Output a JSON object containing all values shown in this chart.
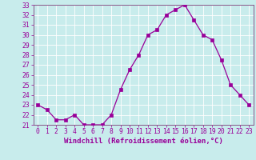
{
  "x": [
    0,
    1,
    2,
    3,
    4,
    5,
    6,
    7,
    8,
    9,
    10,
    11,
    12,
    13,
    14,
    15,
    16,
    17,
    18,
    19,
    20,
    21,
    22,
    23
  ],
  "y": [
    23,
    22.5,
    21.5,
    21.5,
    22,
    21,
    21,
    21,
    22,
    24.5,
    26.5,
    28,
    30,
    30.5,
    32,
    32.5,
    33,
    31.5,
    30,
    29.5,
    27.5,
    25,
    24,
    23
  ],
  "line_color": "#990099",
  "marker": "s",
  "markersize": 2.2,
  "linewidth": 0.9,
  "xlabel": "Windchill (Refroidissement éolien,°C)",
  "ylim": [
    21,
    33
  ],
  "xlim": [
    -0.5,
    23.5
  ],
  "yticks": [
    21,
    22,
    23,
    24,
    25,
    26,
    27,
    28,
    29,
    30,
    31,
    32,
    33
  ],
  "xticks": [
    0,
    1,
    2,
    3,
    4,
    5,
    6,
    7,
    8,
    9,
    10,
    11,
    12,
    13,
    14,
    15,
    16,
    17,
    18,
    19,
    20,
    21,
    22,
    23
  ],
  "bg_color": "#c8ecec",
  "grid_color": "#aadddd",
  "line_grid_color": "#b8e4e4",
  "tick_color": "#990099",
  "label_color": "#990099",
  "spine_color": "#885588",
  "xlabel_fontsize": 6.5,
  "tick_fontsize": 5.8
}
